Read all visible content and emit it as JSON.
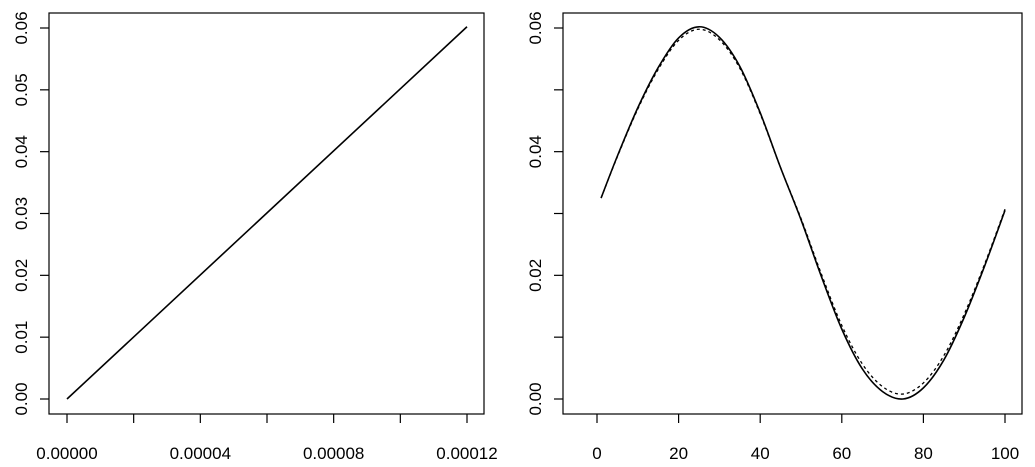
{
  "chart_data": [
    {
      "type": "line",
      "title": "",
      "xlabel": "",
      "ylabel": "",
      "xlim": [
        0,
        0.00012
      ],
      "ylim": [
        0,
        0.06
      ],
      "x_ticks": [
        0,
        2e-05,
        4e-05,
        6e-05,
        8e-05,
        0.0001,
        0.00012
      ],
      "x_tick_labels": [
        "0.00000",
        "",
        "0.00004",
        "",
        "0.00008",
        "",
        "0.00012"
      ],
      "y_ticks": [
        0,
        0.01,
        0.02,
        0.03,
        0.04,
        0.05,
        0.06
      ],
      "y_tick_labels": [
        "0.00",
        "0.01",
        "0.02",
        "0.03",
        "0.04",
        "0.05",
        "0.06"
      ],
      "grid": false,
      "series": [
        {
          "x": [
            0,
            0.00012
          ],
          "y": [
            0,
            0.0602
          ],
          "style": "solid"
        }
      ]
    },
    {
      "type": "line",
      "title": "",
      "xlabel": "",
      "ylabel": "",
      "xlim": [
        0,
        100
      ],
      "ylim": [
        0,
        0.07
      ],
      "x_ticks": [
        0,
        20,
        40,
        60,
        80,
        100
      ],
      "x_tick_labels": [
        "0",
        "20",
        "40",
        "60",
        "80",
        "100"
      ],
      "y_ticks": [
        0,
        0.01,
        0.02,
        0.03,
        0.04,
        0.05,
        0.06
      ],
      "y_tick_labels": [
        "0.00",
        "",
        "0.02",
        "",
        "0.04",
        "",
        "0.06"
      ],
      "grid": false,
      "series": [
        {
          "style": "solid",
          "x": [
            1,
            5,
            10,
            15,
            20,
            25,
            30,
            35,
            40,
            45,
            50,
            55,
            60,
            65,
            70,
            75,
            80,
            85,
            90,
            95,
            100
          ],
          "y": [
            0.0325,
            0.0393,
            0.0471,
            0.0536,
            0.0584,
            0.0602,
            0.0585,
            0.0538,
            0.0463,
            0.0374,
            0.029,
            0.0198,
            0.0113,
            0.0049,
            0.0012,
            0.0,
            0.0018,
            0.0063,
            0.0132,
            0.0215,
            0.0305
          ]
        },
        {
          "style": "dotted",
          "x": [
            1,
            5,
            10,
            15,
            20,
            25,
            30,
            35,
            40,
            45,
            50,
            55,
            60,
            65,
            70,
            75,
            80,
            85,
            90,
            95,
            100
          ],
          "y": [
            0.0325,
            0.0392,
            0.0469,
            0.0533,
            0.058,
            0.0598,
            0.0581,
            0.0535,
            0.0461,
            0.0374,
            0.0292,
            0.0202,
            0.0119,
            0.0057,
            0.002,
            0.0008,
            0.0026,
            0.007,
            0.0137,
            0.0218,
            0.0307
          ]
        }
      ]
    }
  ]
}
